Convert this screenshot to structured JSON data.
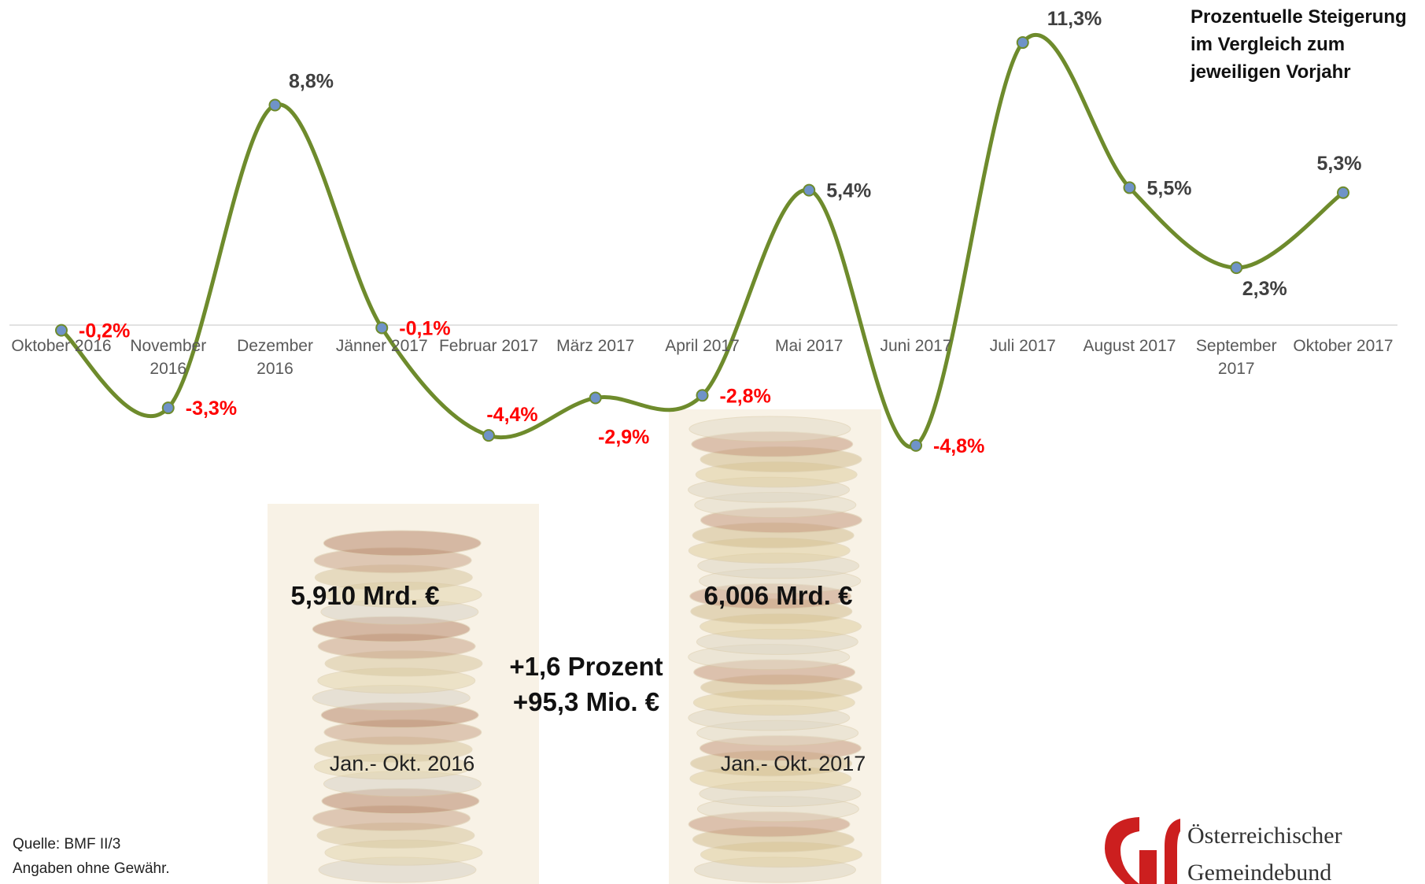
{
  "chart_data": {
    "type": "line",
    "categories": [
      "Oktober 2016",
      "November 2016",
      "Dezember 2016",
      "Jänner 2017",
      "Februar 2017",
      "März 2017",
      "April 2017",
      "Mai 2017",
      "Juni 2017",
      "Juli 2017",
      "August 2017",
      "September 2017",
      "Oktober 2017"
    ],
    "values": [
      -0.2,
      -3.3,
      8.8,
      -0.1,
      -4.4,
      -2.9,
      -2.8,
      5.4,
      -4.8,
      11.3,
      5.5,
      2.3,
      5.3
    ],
    "value_labels": [
      "-0,2%",
      "-3,3%",
      "8,8%",
      "-0,1%",
      "-4,4%",
      "-2,9%",
      "-2,8%",
      "5,4%",
      "-4,8%",
      "11,3%",
      "5,5%",
      "2,3%",
      "5,3%"
    ],
    "color": "#6e8b2c",
    "marker_color": "#6f93c8",
    "negative_label_color": "#ff0000",
    "positive_label_color": "#404040",
    "ylim": [
      -6,
      13
    ],
    "legend_note": "Prozentuelle Steigerung im Vergleich zum jeweiligen Vorjahr"
  },
  "annotations": {
    "total_2016": "5,910 Mrd. €",
    "total_2017": "6,006 Mrd. €",
    "change_percent": "+1,6 Prozent",
    "change_amount": "+95,3 Mio. €",
    "period_2016": "Jan.- Okt. 2016",
    "period_2017": "Jan.- Okt. 2017"
  },
  "footer": {
    "source": "Quelle: BMF II/3",
    "disclaimer": "Angaben ohne Gewähr."
  },
  "logo": {
    "line1": "Österreichischer",
    "line2": "Gemeindebund"
  }
}
